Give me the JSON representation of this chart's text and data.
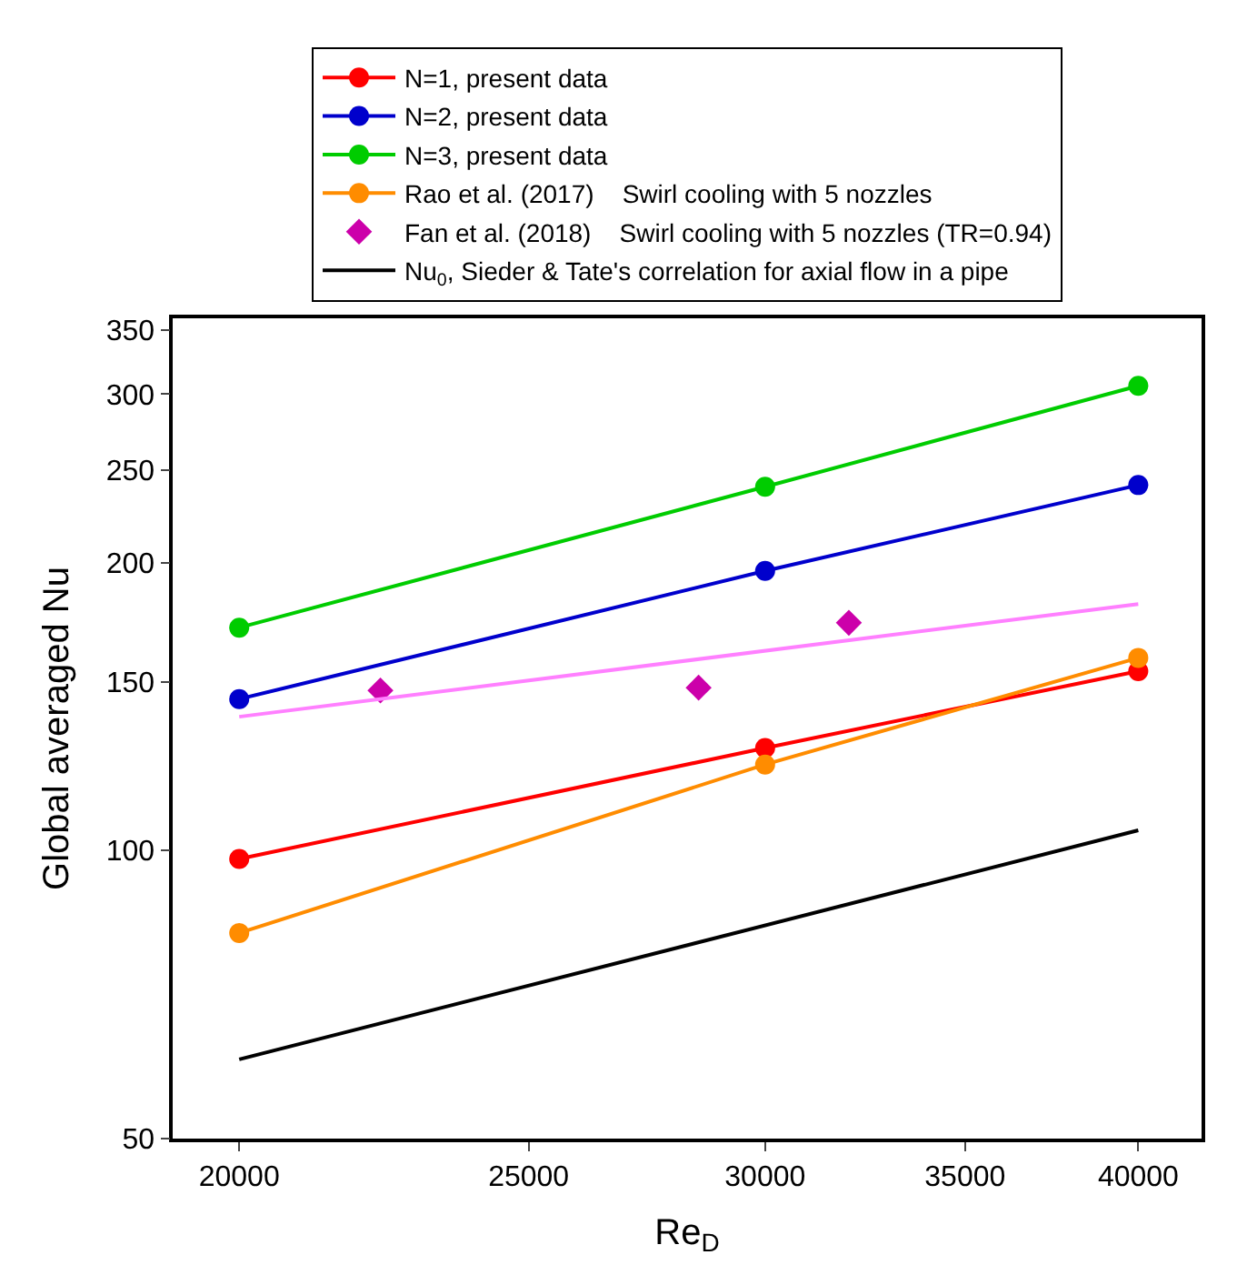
{
  "chart_data": {
    "type": "line",
    "xlabel": "Re$_{D}$",
    "ylabel": "Global averaged Nu",
    "x": [
      20000,
      30000,
      40000
    ],
    "series": [
      {
        "name": "N=1, present data",
        "color": "#ff0000",
        "values": [
          98,
          128,
          154
        ],
        "marker": "circle"
      },
      {
        "name": "N=2, present data",
        "color": "#0000cc",
        "values": [
          144,
          196,
          241
        ],
        "marker": "circle"
      },
      {
        "name": "N=3, present data",
        "color": "#00cc00",
        "values": [
          171,
          240,
          306
        ],
        "marker": "circle"
      },
      {
        "name": "Rao et al. (2017)    Swirl cooling with 5 nozzles",
        "color": "#ff8c00",
        "values": [
          82,
          123,
          159
        ],
        "marker": "circle"
      },
      {
        "name": "Fan et al. (2018)    Swirl cooling with 5 nozzles (TR=0.94)",
        "type": "scatter",
        "color": "#cc00aa",
        "x": [
          22300,
          28500,
          32000
        ],
        "values": [
          147,
          148,
          173
        ],
        "marker": "diamond"
      },
      {
        "type": "line",
        "color": "#ff80ff",
        "x": [
          20000,
          40000
        ],
        "values": [
          138,
          181
        ],
        "marker": "none"
      },
      {
        "name": "Nu$_{0}$, Sieder & Tate's correlation for axial flow in a pipe",
        "color": "#000000",
        "x": [
          20000,
          40000
        ],
        "values": [
          60.5,
          105
        ],
        "marker": "none"
      }
    ],
    "log": "xy",
    "xlim": [
      19000,
      42000
    ],
    "xticks": [
      20000,
      25000,
      30000,
      35000,
      40000
    ],
    "ylim": [
      50,
      360
    ],
    "yticks": [
      50,
      100,
      150,
      200,
      250,
      300,
      350
    ],
    "grid": false,
    "legend": "top"
  }
}
